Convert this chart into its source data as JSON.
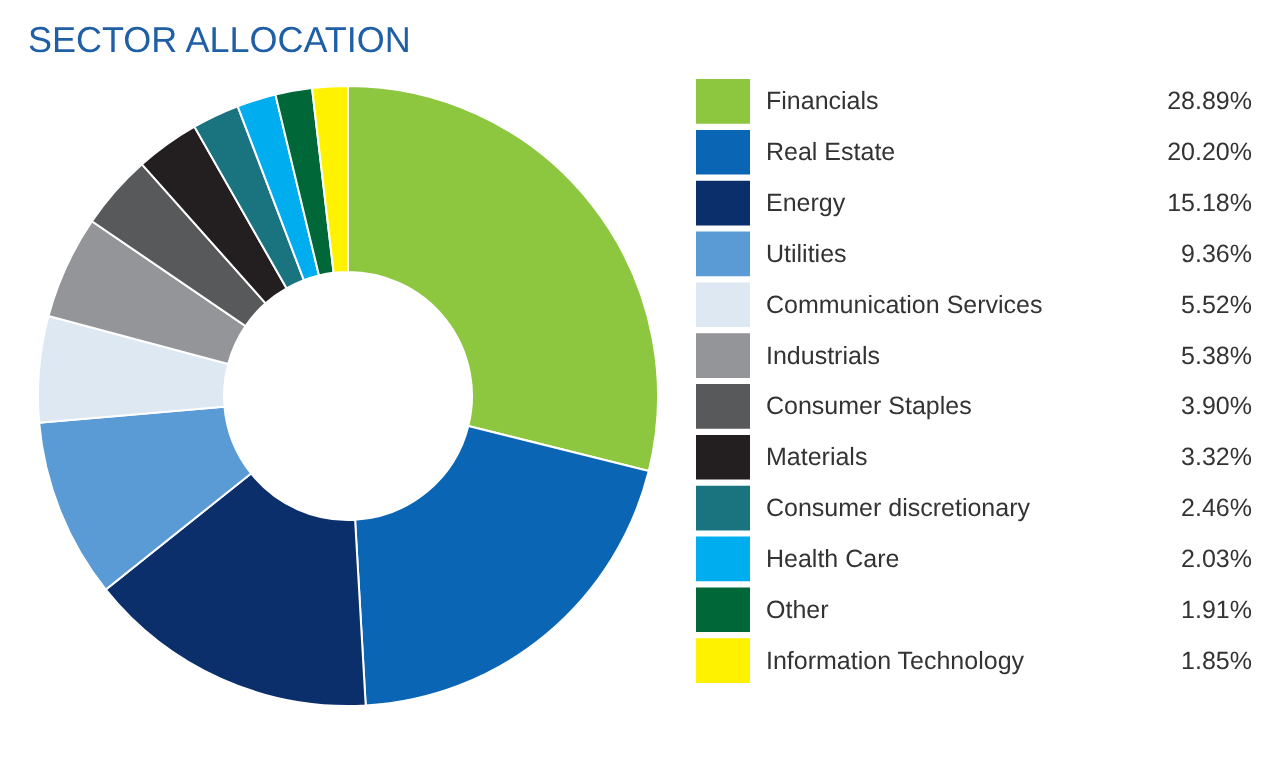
{
  "chart_data": {
    "type": "donut",
    "title": "SECTOR ALLOCATION",
    "categories": [
      "Financials",
      "Real Estate",
      "Energy",
      "Utilities",
      "Communication Services",
      "Industrials",
      "Consumer Staples",
      "Materials",
      "Consumer discretionary",
      "Health Care",
      "Other",
      "Information Technology"
    ],
    "values": [
      28.89,
      20.2,
      15.18,
      9.36,
      5.52,
      5.38,
      3.9,
      3.32,
      2.46,
      2.03,
      1.91,
      1.85
    ],
    "value_labels": [
      "28.89%",
      "20.20%",
      "15.18%",
      "9.36%",
      "5.52%",
      "5.38%",
      "3.90%",
      "3.32%",
      "2.46%",
      "2.03%",
      "1.91%",
      "1.85%"
    ],
    "colors": [
      "#8dc63f",
      "#0a66b5",
      "#0b2f6b",
      "#5b9bd5",
      "#dde8f3",
      "#939598",
      "#58595b",
      "#231f20",
      "#1a7480",
      "#00aeef",
      "#006838",
      "#fff200"
    ],
    "legend": "right"
  }
}
